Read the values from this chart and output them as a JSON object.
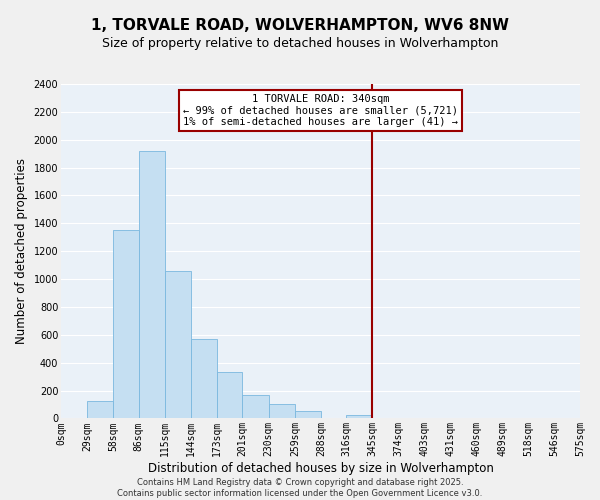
{
  "title": "1, TORVALE ROAD, WOLVERHAMPTON, WV6 8NW",
  "subtitle": "Size of property relative to detached houses in Wolverhampton",
  "xlabel": "Distribution of detached houses by size in Wolverhampton",
  "ylabel": "Number of detached properties",
  "bar_color": "#c5dff2",
  "bar_edge_color": "#7ab8df",
  "background_color": "#f0f0f0",
  "plot_bg_color": "#eaf1f8",
  "grid_color": "#ffffff",
  "bin_labels": [
    "0sqm",
    "29sqm",
    "58sqm",
    "86sqm",
    "115sqm",
    "144sqm",
    "173sqm",
    "201sqm",
    "230sqm",
    "259sqm",
    "288sqm",
    "316sqm",
    "345sqm",
    "374sqm",
    "403sqm",
    "431sqm",
    "460sqm",
    "489sqm",
    "518sqm",
    "546sqm",
    "575sqm"
  ],
  "bin_edges": [
    0,
    29,
    58,
    86,
    115,
    144,
    173,
    201,
    230,
    259,
    288,
    316,
    345,
    374,
    403,
    431,
    460,
    489,
    518,
    546,
    575
  ],
  "bar_heights": [
    0,
    125,
    1350,
    1920,
    1060,
    570,
    335,
    165,
    105,
    55,
    0,
    25,
    0,
    0,
    0,
    0,
    0,
    0,
    0,
    0
  ],
  "ylim": [
    0,
    2400
  ],
  "yticks": [
    0,
    200,
    400,
    600,
    800,
    1000,
    1200,
    1400,
    1600,
    1800,
    2000,
    2200,
    2400
  ],
  "xlim": [
    0,
    575
  ],
  "vline_x": 345,
  "vline_color": "#990000",
  "annotation_title": "1 TORVALE ROAD: 340sqm",
  "annotation_line1": "← 99% of detached houses are smaller (5,721)",
  "annotation_line2": "1% of semi-detached houses are larger (41) →",
  "annotation_box_color": "#ffffff",
  "annotation_border_color": "#990000",
  "footer_line1": "Contains HM Land Registry data © Crown copyright and database right 2025.",
  "footer_line2": "Contains public sector information licensed under the Open Government Licence v3.0.",
  "title_fontsize": 11,
  "subtitle_fontsize": 9,
  "axis_label_fontsize": 8.5,
  "tick_fontsize": 7,
  "annotation_fontsize": 7.5,
  "footer_fontsize": 6
}
